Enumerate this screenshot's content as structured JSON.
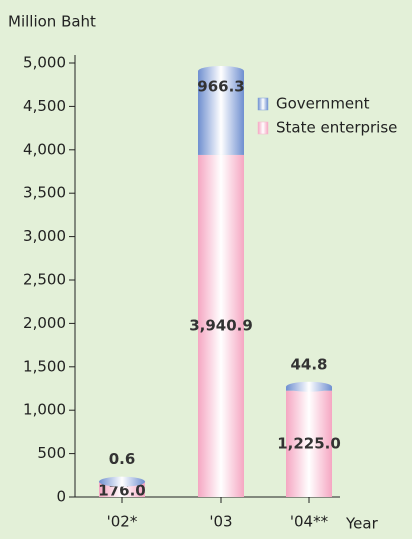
{
  "chart_data": {
    "type": "stacked_bar",
    "y_label": "Million Baht",
    "x_label": "Year",
    "categories": [
      "'02*",
      "'03",
      "'04**"
    ],
    "series": [
      {
        "name": "Government",
        "color": "#7f9fd8",
        "values": [
          0.6,
          966.3,
          44.8
        ],
        "value_labels": [
          "0.6",
          "966.3",
          "44.8"
        ]
      },
      {
        "name": "State enterprise",
        "color": "#f7b3cb",
        "values": [
          176.0,
          3940.9,
          1225.0
        ],
        "value_labels": [
          "176.0",
          "3,940.9",
          "1,225.0"
        ]
      }
    ],
    "ylim": [
      0,
      5000
    ],
    "yticks": [
      0,
      500,
      {
        "value": 1000,
        "label": "1,000"
      },
      {
        "value": 1500,
        "label": "1,500"
      },
      {
        "value": 2000,
        "label": "2,000"
      },
      {
        "value": 2500,
        "label": "2,500"
      },
      {
        "value": 3000,
        "label": "3,000"
      },
      {
        "value": 3500,
        "label": "3,500"
      },
      {
        "value": 4000,
        "label": "4,000"
      },
      {
        "value": 4500,
        "label": "4,500"
      },
      {
        "value": 5000,
        "label": "5,000"
      }
    ],
    "legend": "top-right"
  }
}
